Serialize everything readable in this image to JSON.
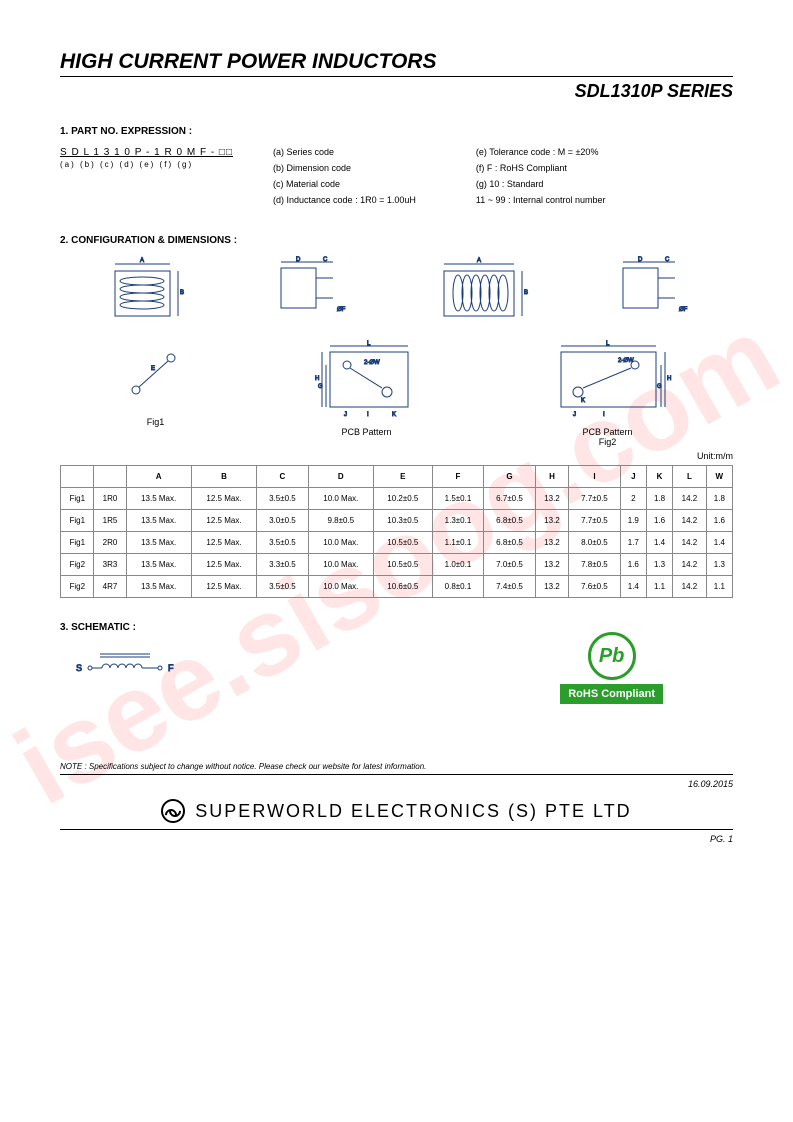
{
  "watermark": "isee.sisoog.com",
  "header": {
    "title": "HIGH CURRENT POWER INDUCTORS",
    "series": "SDL1310P SERIES"
  },
  "section1": {
    "title": "1. PART NO. EXPRESSION :",
    "code": "S D L 1 3 1 0 P - 1 R 0 M F - □□",
    "labels": "(a)   (b)   (c)   (d)   (e) (f)   (g)",
    "legend_left": [
      "(a) Series code",
      "(b) Dimension code",
      "(c) Material code",
      "(d) Inductance code : 1R0 = 1.00uH"
    ],
    "legend_right": [
      "(e) Tolerance code : M = ±20%",
      "(f) F : RoHS Compliant",
      "(g) 10 : Standard",
      "11 ~ 99 : Internal control number"
    ]
  },
  "section2": {
    "title": "2. CONFIGURATION & DIMENSIONS :",
    "fig1": "Fig1",
    "fig2": "Fig2",
    "pcb": "PCB Pattern",
    "unit": "Unit:m/m",
    "columns": [
      "",
      "",
      "A",
      "B",
      "C",
      "D",
      "E",
      "F",
      "G",
      "H",
      "I",
      "J",
      "K",
      "L",
      "W"
    ],
    "rows": [
      [
        "Fig1",
        "1R0",
        "13.5 Max.",
        "12.5 Max.",
        "3.5±0.5",
        "10.0 Max.",
        "10.2±0.5",
        "1.5±0.1",
        "6.7±0.5",
        "13.2",
        "7.7±0.5",
        "2",
        "1.8",
        "14.2",
        "1.8"
      ],
      [
        "Fig1",
        "1R5",
        "13.5 Max.",
        "12.5 Max.",
        "3.0±0.5",
        "9.8±0.5",
        "10.3±0.5",
        "1.3±0.1",
        "6.8±0.5",
        "13.2",
        "7.7±0.5",
        "1.9",
        "1.6",
        "14.2",
        "1.6"
      ],
      [
        "Fig1",
        "2R0",
        "13.5 Max.",
        "12.5 Max.",
        "3.5±0.5",
        "10.0 Max.",
        "10.5±0.5",
        "1.1±0.1",
        "6.8±0.5",
        "13.2",
        "8.0±0.5",
        "1.7",
        "1.4",
        "14.2",
        "1.4"
      ],
      [
        "Fig2",
        "3R3",
        "13.5 Max.",
        "12.5 Max.",
        "3.3±0.5",
        "10.0 Max.",
        "10.5±0.5",
        "1.0±0.1",
        "7.0±0.5",
        "13.2",
        "7.8±0.5",
        "1.6",
        "1.3",
        "14.2",
        "1.3"
      ],
      [
        "Fig2",
        "4R7",
        "13.5 Max.",
        "12.5 Max.",
        "3.5±0.5",
        "10.0 Max.",
        "10.6±0.5",
        "0.8±0.1",
        "7.4±0.5",
        "13.2",
        "7.6±0.5",
        "1.4",
        "1.1",
        "14.2",
        "1.1"
      ]
    ]
  },
  "section3": {
    "title": "3. SCHEMATIC :",
    "s": "S",
    "f": "F"
  },
  "rohs": {
    "pb": "Pb",
    "text": "RoHS Compliant"
  },
  "note": "NOTE : Specifications subject to change without notice. Please check our website for latest information.",
  "date": "16.09.2015",
  "footer": "SUPERWORLD  ELECTRONICS  (S)  PTE  LTD",
  "pg": "PG. 1",
  "colors": {
    "diagram_stroke": "#1a3d7a",
    "watermark": "rgba(255,180,180,0.35)",
    "rohs_green": "#2a9d2a"
  }
}
